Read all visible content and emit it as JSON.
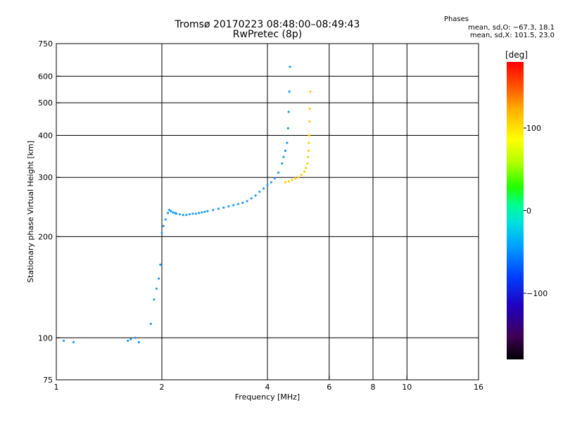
{
  "header": {
    "title_line1": "Tromsø 20170223 08:48:00–08:49:43",
    "title_line2": "RwPretec (8p)"
  },
  "stats": {
    "heading": "Phases",
    "line_o": "mean, sd,O: −67.3, 18.1",
    "line_x": "mean, sd,X: 101.5, 23.0"
  },
  "colorbar": {
    "unit_label": "[deg]",
    "ticks": [
      "100",
      "0",
      "−100"
    ],
    "tick_values": [
      100,
      0,
      -100
    ],
    "range": [
      -180,
      180
    ]
  },
  "chart_data": {
    "type": "scatter",
    "title": "Tromsø 20170223 08:48:00–08:49:43",
    "subtitle": "RwPretec (8p)",
    "xlabel": "Frequency [MHz]",
    "ylabel": "Stationary phase Virtual Height [km]",
    "xscale": "log",
    "yscale": "log",
    "xlim": [
      1,
      16
    ],
    "ylim": [
      75,
      750
    ],
    "xticks": [
      1,
      2,
      4,
      6,
      8,
      10,
      16
    ],
    "xtick_labels": [
      "1",
      "2",
      "4",
      "6",
      "8",
      "10",
      "16"
    ],
    "yticks": [
      75,
      100,
      200,
      300,
      400,
      500,
      600,
      750
    ],
    "ytick_labels": [
      "75",
      "100",
      "200",
      "300",
      "400",
      "500",
      "600",
      "750"
    ],
    "grid_x": [
      2,
      4,
      6,
      8,
      10
    ],
    "grid_y": [
      100,
      200,
      300,
      400,
      500,
      600
    ],
    "colorscale": [
      "#000000",
      "#5a0070",
      "#0000d0",
      "#0060ff",
      "#00b0ff",
      "#00e0e0",
      "#00ff80",
      "#30ff00",
      "#c0ff00",
      "#ffe000",
      "#ff8000",
      "#ff0000"
    ],
    "series": [
      {
        "component": "O",
        "phase_deg": -67.3,
        "color": "#1aa0ff",
        "x": [
          1.05,
          1.12,
          1.6,
          1.63,
          1.68,
          1.72,
          1.86,
          1.9,
          1.93,
          1.96,
          1.98,
          2.0,
          2.02,
          2.05,
          2.08,
          2.1,
          2.12,
          2.15,
          2.18,
          2.2,
          2.25,
          2.3,
          2.35,
          2.4,
          2.45,
          2.5,
          2.55,
          2.6,
          2.65,
          2.7,
          2.8,
          2.9,
          3.0,
          3.1,
          3.2,
          3.3,
          3.4,
          3.5,
          3.6,
          3.7,
          3.8,
          3.9,
          4.0,
          4.1,
          4.2,
          4.3,
          4.4,
          4.45,
          4.5,
          4.55,
          4.58,
          4.6,
          4.62,
          4.64
        ],
        "y": [
          98,
          97,
          98,
          99,
          100,
          97,
          110,
          130,
          140,
          150,
          165,
          205,
          215,
          225,
          235,
          240,
          238,
          236,
          235,
          234,
          233,
          232,
          232,
          233,
          234,
          234,
          235,
          236,
          237,
          238,
          240,
          242,
          244,
          246,
          248,
          250,
          252,
          255,
          260,
          265,
          272,
          278,
          285,
          290,
          298,
          310,
          330,
          345,
          360,
          380,
          420,
          470,
          540,
          640
        ]
      },
      {
        "component": "X",
        "phase_deg": 101.5,
        "color": "#ffd000",
        "x": [
          4.5,
          4.6,
          4.7,
          4.8,
          4.9,
          5.0,
          5.1,
          5.15,
          5.2,
          5.22,
          5.24,
          5.25,
          5.26,
          5.27,
          5.28,
          5.3
        ],
        "y": [
          290,
          292,
          295,
          298,
          300,
          305,
          312,
          320,
          330,
          345,
          360,
          380,
          400,
          440,
          480,
          540
        ]
      }
    ]
  }
}
